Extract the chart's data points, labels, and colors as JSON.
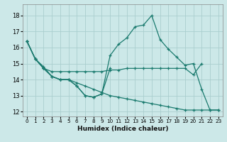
{
  "xlabel": "Humidex (Indice chaleur)",
  "xlim": [
    -0.5,
    23.5
  ],
  "ylim": [
    11.7,
    18.7
  ],
  "yticks": [
    12,
    13,
    14,
    15,
    16,
    17,
    18
  ],
  "xticks": [
    0,
    1,
    2,
    3,
    4,
    5,
    6,
    7,
    8,
    9,
    10,
    11,
    12,
    13,
    14,
    15,
    16,
    17,
    18,
    19,
    20,
    21,
    22,
    23
  ],
  "background_color": "#cce8e8",
  "grid_color": "#aacece",
  "line_color": "#1a7a6e",
  "s1_x": [
    0,
    1,
    2,
    3,
    4,
    5,
    6,
    7,
    8,
    9,
    10,
    11,
    12,
    13,
    14,
    15,
    16,
    17,
    18,
    19,
    20,
    21,
    22,
    23
  ],
  "s1_y": [
    16.4,
    15.3,
    14.7,
    14.2,
    14.0,
    14.0,
    13.6,
    13.0,
    12.9,
    13.1,
    15.5,
    16.2,
    16.6,
    17.3,
    17.4,
    18.0,
    16.5,
    15.9,
    15.4,
    14.9,
    15.0,
    13.4,
    12.1,
    12.1
  ],
  "s2_x": [
    0,
    1,
    2,
    3,
    4,
    5,
    6,
    7,
    8,
    9,
    10
  ],
  "s2_y": [
    16.4,
    15.3,
    14.7,
    14.2,
    14.0,
    14.0,
    13.6,
    13.0,
    12.9,
    13.1,
    14.7
  ],
  "s3_x": [
    0,
    1,
    2,
    3,
    4,
    5,
    6,
    7,
    8,
    9,
    10,
    11,
    12,
    13,
    14,
    15,
    16,
    17,
    18,
    19,
    20,
    21
  ],
  "s3_y": [
    16.4,
    15.3,
    14.7,
    14.5,
    14.5,
    14.5,
    14.5,
    14.5,
    14.5,
    14.5,
    14.6,
    14.6,
    14.7,
    14.7,
    14.7,
    14.7,
    14.7,
    14.7,
    14.7,
    14.7,
    14.3,
    15.0
  ],
  "s4_x": [
    0,
    1,
    2,
    3,
    4,
    5,
    6,
    7,
    8,
    9,
    10,
    11,
    12,
    13,
    14,
    15,
    16,
    17,
    18,
    19,
    20,
    21,
    22,
    23
  ],
  "s4_y": [
    16.4,
    15.3,
    14.8,
    14.2,
    14.0,
    14.0,
    13.8,
    13.6,
    13.4,
    13.2,
    13.0,
    12.9,
    12.8,
    12.7,
    12.6,
    12.5,
    12.4,
    12.3,
    12.2,
    12.1,
    12.1,
    12.1,
    12.1,
    12.1
  ]
}
